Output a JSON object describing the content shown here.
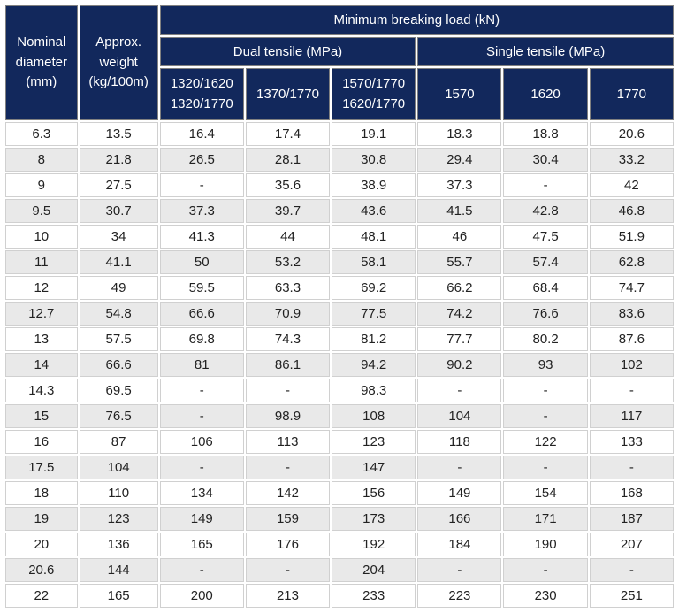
{
  "table": {
    "type": "table",
    "header_bg": "#12285c",
    "header_fg": "#ffffff",
    "row_bg_odd": "#ffffff",
    "row_bg_even": "#e9e9e9",
    "border_color": "#d0d0d0",
    "fontsize": 15,
    "headers": {
      "nominal_diameter_l1": "Nominal",
      "nominal_diameter_l2": "diameter",
      "nominal_diameter_l3": "(mm)",
      "approx_weight_l1": "Approx.",
      "approx_weight_l2": "weight",
      "approx_weight_l3": "(kg/100m)",
      "min_breaking_load": "Minimum breaking load (kN)",
      "dual_tensile": "Dual tensile (MPa)",
      "single_tensile": "Single tensile (MPa)",
      "dual1_l1": "1320/1620",
      "dual1_l2": "1320/1770",
      "dual2": "1370/1770",
      "dual3_l1": "1570/1770",
      "dual3_l2": "1620/1770",
      "single1": "1570",
      "single2": "1620",
      "single3": "1770"
    },
    "rows": [
      [
        "6.3",
        "13.5",
        "16.4",
        "17.4",
        "19.1",
        "18.3",
        "18.8",
        "20.6"
      ],
      [
        "8",
        "21.8",
        "26.5",
        "28.1",
        "30.8",
        "29.4",
        "30.4",
        "33.2"
      ],
      [
        "9",
        "27.5",
        "-",
        "35.6",
        "38.9",
        "37.3",
        "-",
        "42"
      ],
      [
        "9.5",
        "30.7",
        "37.3",
        "39.7",
        "43.6",
        "41.5",
        "42.8",
        "46.8"
      ],
      [
        "10",
        "34",
        "41.3",
        "44",
        "48.1",
        "46",
        "47.5",
        "51.9"
      ],
      [
        "11",
        "41.1",
        "50",
        "53.2",
        "58.1",
        "55.7",
        "57.4",
        "62.8"
      ],
      [
        "12",
        "49",
        "59.5",
        "63.3",
        "69.2",
        "66.2",
        "68.4",
        "74.7"
      ],
      [
        "12.7",
        "54.8",
        "66.6",
        "70.9",
        "77.5",
        "74.2",
        "76.6",
        "83.6"
      ],
      [
        "13",
        "57.5",
        "69.8",
        "74.3",
        "81.2",
        "77.7",
        "80.2",
        "87.6"
      ],
      [
        "14",
        "66.6",
        "81",
        "86.1",
        "94.2",
        "90.2",
        "93",
        "102"
      ],
      [
        "14.3",
        "69.5",
        "-",
        "-",
        "98.3",
        "-",
        "-",
        "-"
      ],
      [
        "15",
        "76.5",
        "-",
        "98.9",
        "108",
        "104",
        "-",
        "117"
      ],
      [
        "16",
        "87",
        "106",
        "113",
        "123",
        "118",
        "122",
        "133"
      ],
      [
        "17.5",
        "104",
        "-",
        "-",
        "147",
        "-",
        "-",
        "-"
      ],
      [
        "18",
        "110",
        "134",
        "142",
        "156",
        "149",
        "154",
        "168"
      ],
      [
        "19",
        "123",
        "149",
        "159",
        "173",
        "166",
        "171",
        "187"
      ],
      [
        "20",
        "136",
        "165",
        "176",
        "192",
        "184",
        "190",
        "207"
      ],
      [
        "20.6",
        "144",
        "-",
        "-",
        "204",
        "-",
        "-",
        "-"
      ],
      [
        "22",
        "165",
        "200",
        "213",
        "233",
        "223",
        "230",
        "251"
      ]
    ]
  }
}
